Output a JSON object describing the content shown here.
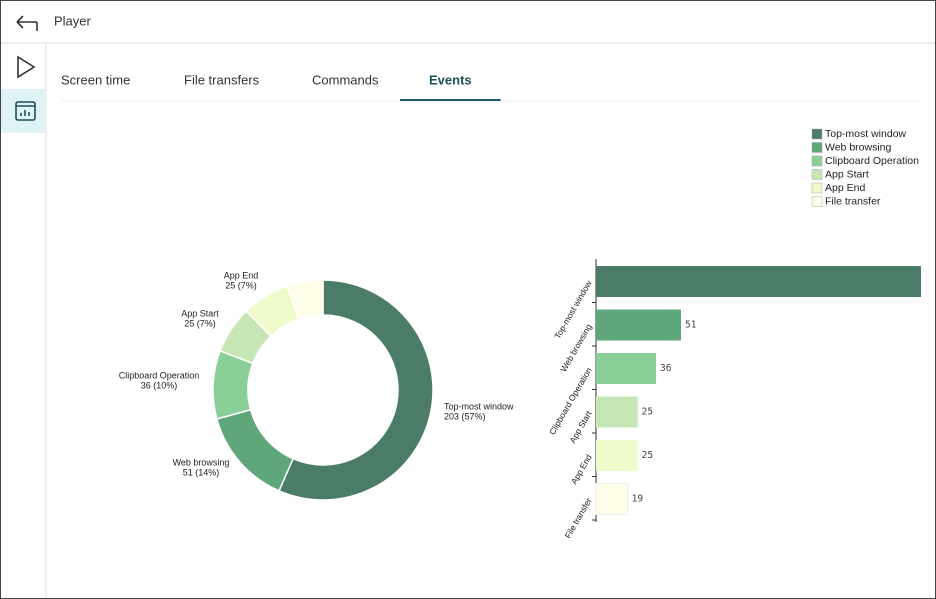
{
  "header": {
    "title": "Player"
  },
  "tabs": [
    {
      "label": "Screen time",
      "active": false
    },
    {
      "label": "File transfers",
      "active": false
    },
    {
      "label": "Commands",
      "active": false
    },
    {
      "label": "Events",
      "active": true
    }
  ],
  "chart_data": [
    {
      "type": "donut",
      "categories": [
        "Top-most window",
        "Web browsing",
        "Clipboard Operation",
        "App Start",
        "App End",
        "File transfer"
      ],
      "values": [
        203,
        51,
        36,
        25,
        25,
        19
      ],
      "value_labels": [
        "203 (57%)",
        "51 (14%)",
        "36 (10%)",
        "25 (7%)",
        "25 (7%)",
        null
      ],
      "colors": [
        "#4a7c68",
        "#5fa67a",
        "#8bcf98",
        "#c7e6b5",
        "#eefac9",
        "#fdfde8"
      ],
      "legend": "top-right"
    },
    {
      "type": "hbar",
      "categories": [
        "Top-most window",
        "Web browsing",
        "Clipboard Operation",
        "App Start",
        "App End",
        "File transfer"
      ],
      "values": [
        203,
        51,
        36,
        25,
        25,
        19
      ],
      "colors": [
        "#4a7c68",
        "#5fa67a",
        "#8bcf98",
        "#c7e6b5",
        "#eefac9",
        "#fdfde8"
      ],
      "xlim": [
        0,
        195
      ]
    }
  ]
}
